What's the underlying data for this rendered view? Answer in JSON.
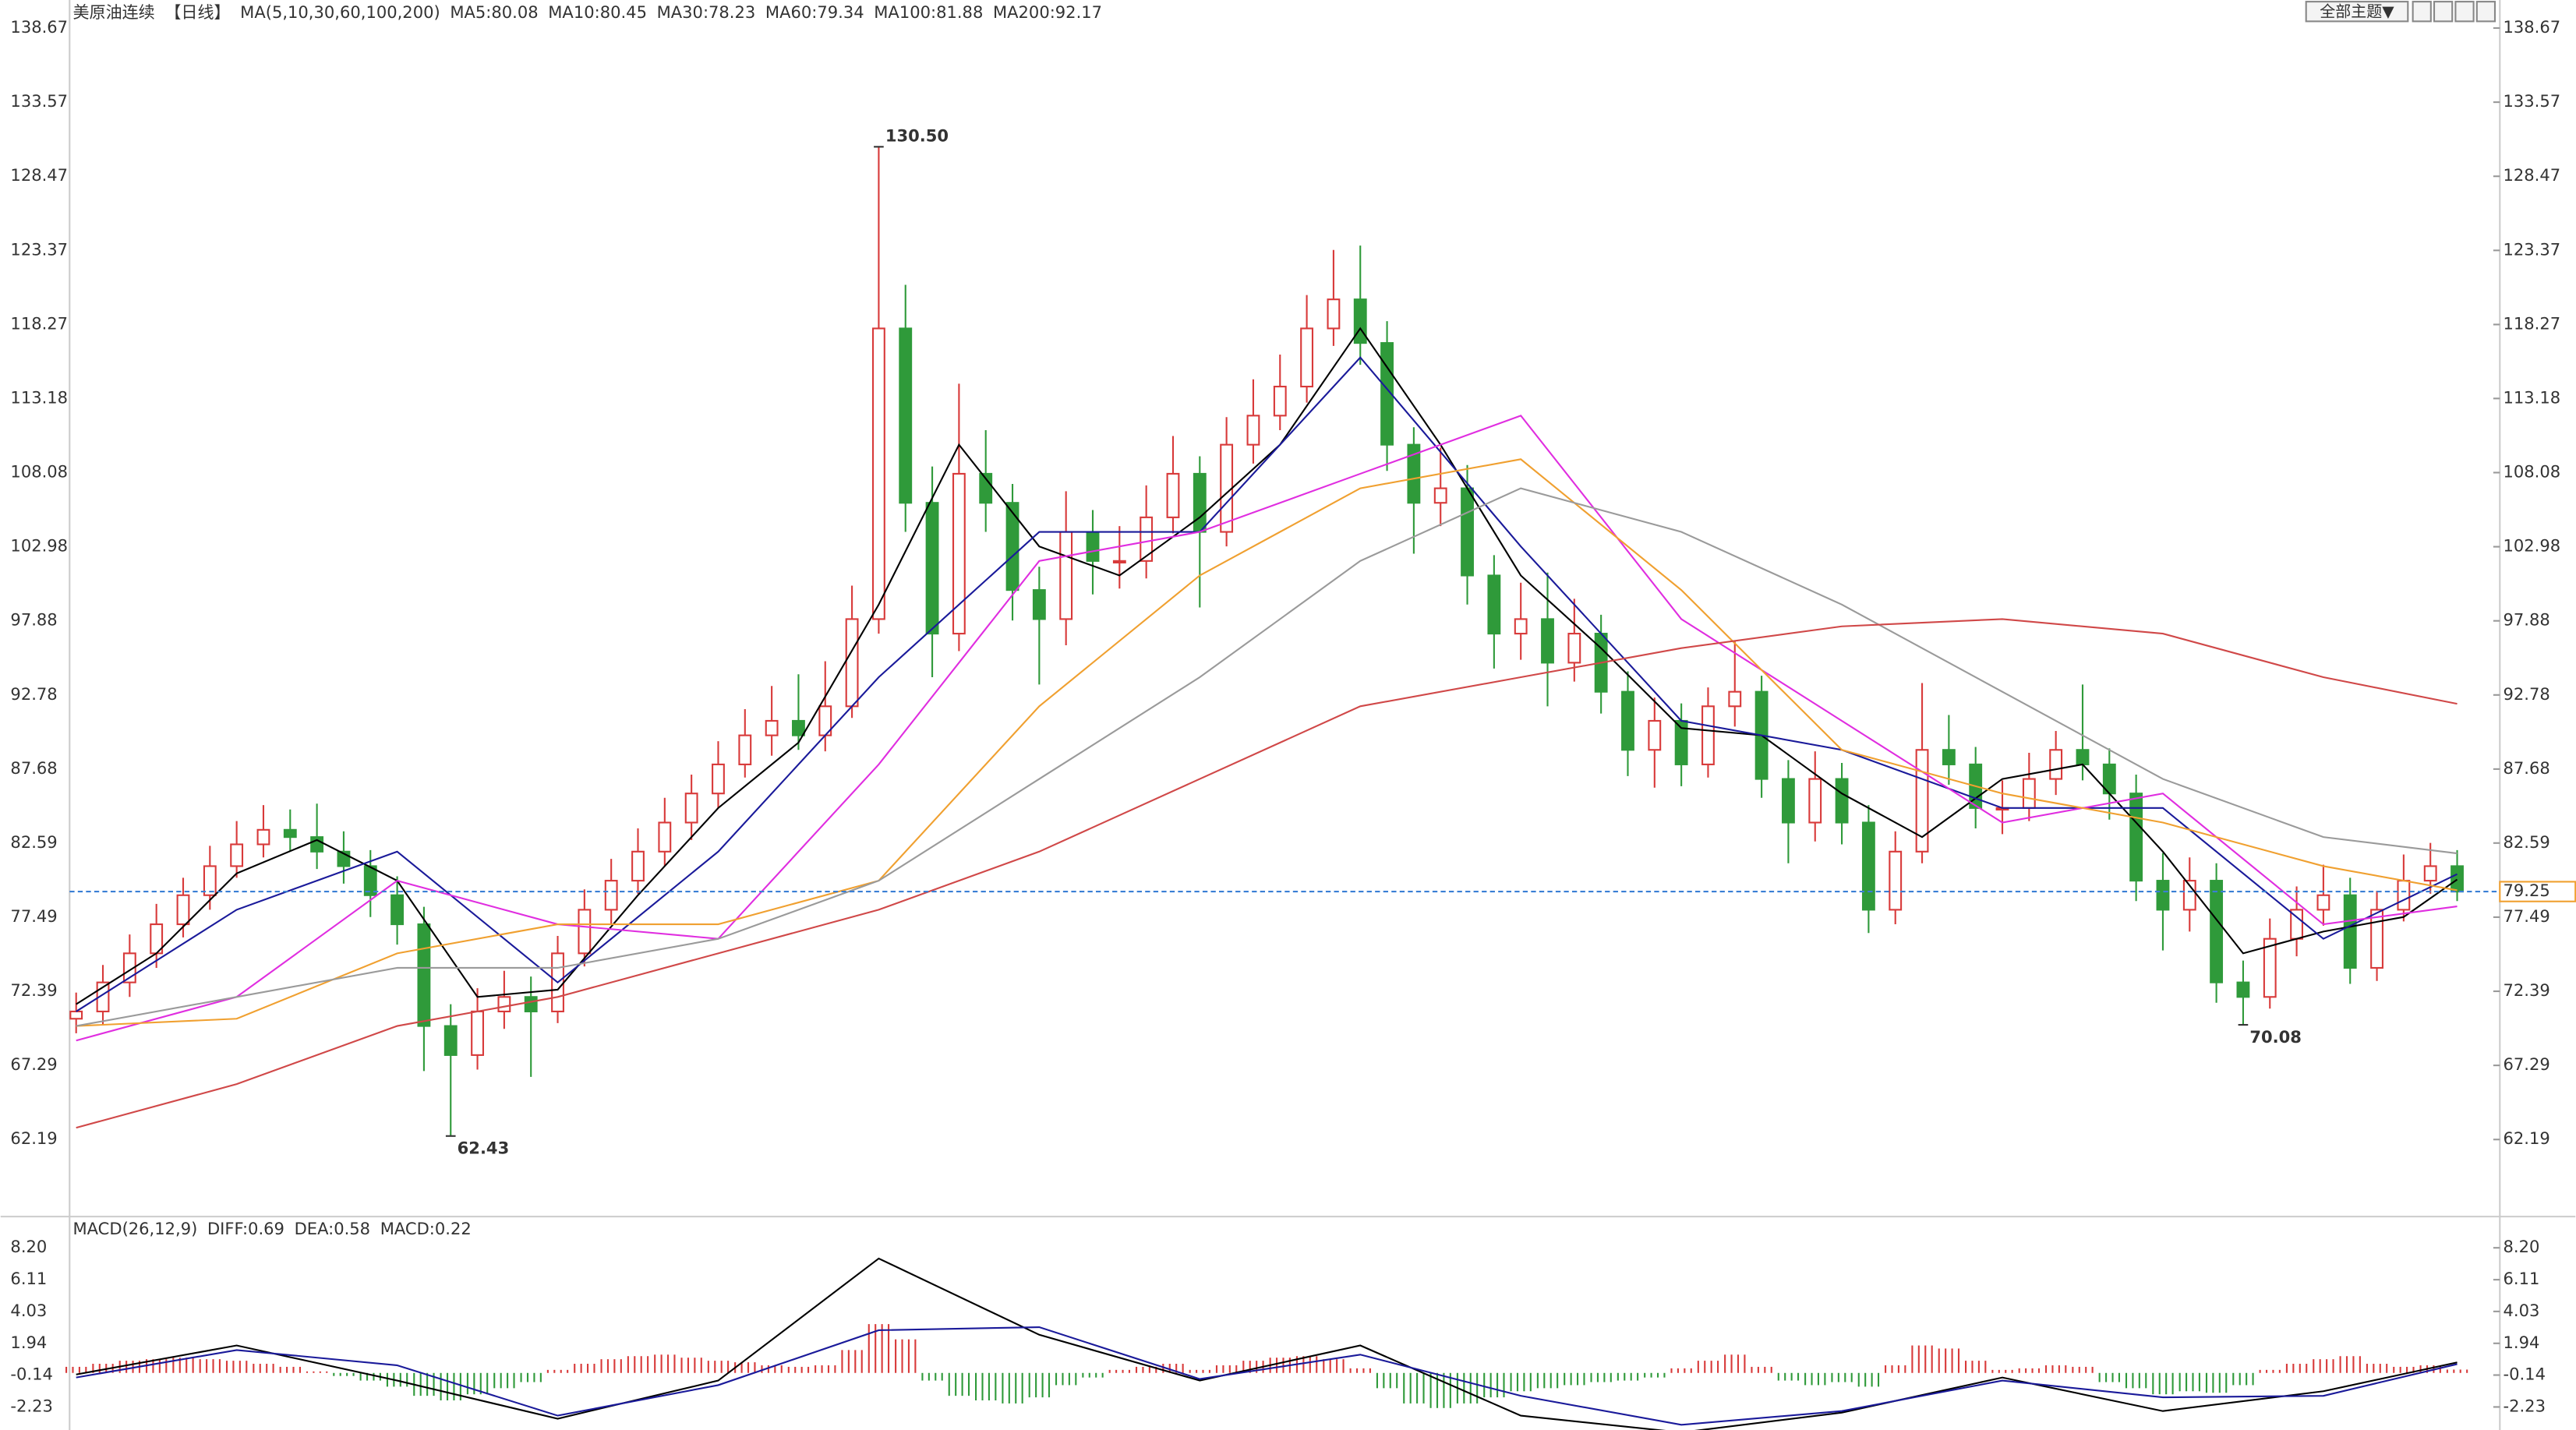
{
  "chart_data": [
    {
      "type": "candlestick",
      "title": "美原油连续",
      "period": "【日线】",
      "ma_title": "MA(5,10,30,60,100,200)",
      "ylim": [
        57.0,
        140.6
      ],
      "yticks": [
        138.67,
        133.57,
        128.47,
        123.37,
        118.27,
        113.18,
        108.08,
        102.98,
        97.88,
        92.78,
        87.68,
        82.59,
        77.49,
        72.39,
        67.29,
        62.19
      ],
      "grid": false,
      "up_color": "#d83a3a",
      "down_color": "#2f9a3a",
      "open": [
        70.5,
        71,
        73,
        75,
        77,
        79,
        81,
        82.5,
        83.5,
        83,
        82,
        81,
        79,
        77,
        70,
        68,
        71,
        72,
        71,
        75,
        78,
        80,
        82,
        84,
        86,
        88,
        90,
        91,
        90,
        92,
        98,
        118,
        106,
        97,
        108,
        106,
        100,
        98,
        104,
        102,
        102,
        105,
        108,
        104,
        110,
        112,
        114,
        118,
        120,
        117,
        110,
        106,
        107,
        101,
        97,
        98,
        95,
        97,
        93,
        89,
        91,
        88,
        92,
        93,
        87,
        84,
        87,
        84,
        78,
        82,
        89,
        88,
        85,
        85,
        87,
        89,
        88,
        86,
        80,
        78,
        80,
        73,
        72,
        76,
        78,
        79,
        74,
        78,
        80,
        81
      ],
      "high": [
        72.3,
        74.2,
        76.3,
        78.4,
        80.2,
        82.4,
        84.1,
        85.2,
        84.9,
        85.3,
        83.4,
        82.1,
        80.3,
        78.2,
        71.5,
        72.6,
        73.8,
        73.4,
        76.2,
        79.4,
        81.5,
        83.6,
        85.7,
        87.3,
        89.6,
        91.8,
        93.4,
        94.2,
        95.1,
        100.3,
        130.5,
        121,
        108.5,
        114.2,
        111,
        107.3,
        101.6,
        106.8,
        105.5,
        104.4,
        107.2,
        110.6,
        109.2,
        111.9,
        114.5,
        116.2,
        120.3,
        123.4,
        123.7,
        118.5,
        111.2,
        109.8,
        108.6,
        102.4,
        100.5,
        101.2,
        99.4,
        98.3,
        94.4,
        92.6,
        92.2,
        93.3,
        96.5,
        94.1,
        88.3,
        88.9,
        88.1,
        85.2,
        83.4,
        93.6,
        91.4,
        89.2,
        86.9,
        88.8,
        90.3,
        93.5,
        89.1,
        87.3,
        81.9,
        81.6,
        81.2,
        74.5,
        77.4,
        79.6,
        81.1,
        80.2,
        79.3,
        81.8,
        82.6,
        82.1
      ],
      "low": [
        69.5,
        70.1,
        72,
        74,
        76.1,
        78,
        80.2,
        81.6,
        82,
        80.8,
        79.8,
        77.5,
        75.6,
        66.9,
        62.43,
        67,
        69.8,
        66.5,
        70.2,
        74.1,
        77,
        79.1,
        81,
        82.8,
        85,
        87.1,
        88.6,
        89,
        88.9,
        91.2,
        97,
        104,
        94,
        95.8,
        104,
        97.9,
        93.5,
        96.2,
        99.7,
        100.1,
        100.8,
        103.9,
        98.8,
        103,
        108.7,
        111,
        112.9,
        116.8,
        115.5,
        108.2,
        102.5,
        104.4,
        99,
        94.6,
        95.2,
        92,
        93.7,
        91.5,
        87.2,
        86.4,
        86.5,
        87.1,
        90.6,
        85.7,
        81.2,
        82.7,
        82.5,
        76.4,
        77,
        81.2,
        86.6,
        83.6,
        83.2,
        84.1,
        85.9,
        86.9,
        84.2,
        78.6,
        75.2,
        76.5,
        71.6,
        70.08,
        71.2,
        74.8,
        76.9,
        72.9,
        73.1,
        77.2,
        79.1,
        78.6
      ],
      "close": [
        71,
        73,
        75,
        77,
        79,
        81,
        82.5,
        83.5,
        83,
        82,
        81,
        79,
        77,
        70,
        68,
        71,
        72,
        71,
        75,
        78,
        80,
        82,
        84,
        86,
        88,
        90,
        91,
        90,
        92,
        98,
        118,
        106,
        97,
        108,
        106,
        100,
        98,
        104,
        102,
        102,
        105,
        108,
        104,
        110,
        112,
        114,
        118,
        120,
        117,
        110,
        106,
        107,
        101,
        97,
        98,
        95,
        97,
        93,
        89,
        91,
        88,
        92,
        93,
        87,
        84,
        87,
        84,
        78,
        82,
        89,
        88,
        85,
        85,
        87,
        89,
        88,
        86,
        80,
        78,
        80,
        73,
        72,
        76,
        78,
        79,
        74,
        78,
        80,
        81,
        79.25
      ],
      "series": [
        {
          "name": "MA5:80.08",
          "color": "#000000",
          "x": [
            0,
            3,
            6,
            9,
            12,
            15,
            18,
            21,
            24,
            27,
            30,
            33,
            36,
            39,
            42,
            45,
            48,
            51,
            54,
            57,
            60,
            63,
            66,
            69,
            72,
            75,
            78,
            81,
            84,
            87,
            89
          ],
          "values": [
            71.5,
            75,
            80.5,
            82.8,
            80,
            72,
            72.5,
            79,
            85,
            89.5,
            99,
            110,
            103,
            101,
            105,
            110,
            118,
            110,
            101,
            96,
            90.5,
            90,
            86,
            83,
            87,
            88,
            82,
            75,
            76.5,
            77.5,
            80.08
          ]
        },
        {
          "name": "MA10:80.45",
          "color": "#1a1a9a",
          "x": [
            0,
            6,
            12,
            18,
            24,
            30,
            36,
            42,
            48,
            54,
            60,
            66,
            72,
            78,
            84,
            89
          ],
          "values": [
            71,
            78,
            82,
            73,
            82,
            94,
            104,
            104,
            116,
            103,
            91,
            89,
            85,
            85,
            76,
            80.45
          ]
        },
        {
          "name": "MA30:78.23",
          "color": "#e02ee0",
          "x": [
            0,
            6,
            12,
            18,
            24,
            30,
            36,
            42,
            48,
            54,
            60,
            66,
            72,
            78,
            84,
            89
          ],
          "values": [
            69,
            72,
            80,
            77,
            76,
            88,
            102,
            104,
            108,
            112,
            98,
            91,
            84,
            86,
            77,
            78.23
          ]
        },
        {
          "name": "MA60:79.34",
          "color": "#f0a030",
          "x": [
            0,
            6,
            12,
            18,
            24,
            30,
            36,
            42,
            48,
            54,
            60,
            66,
            72,
            78,
            84,
            89
          ],
          "values": [
            70,
            70.5,
            75,
            77,
            77,
            80,
            92,
            101,
            107,
            109,
            100,
            89,
            86,
            84,
            81,
            79.34
          ]
        },
        {
          "name": "MA100:81.88",
          "color": "#9a9a9a",
          "x": [
            0,
            6,
            12,
            18,
            24,
            30,
            36,
            42,
            48,
            54,
            60,
            66,
            72,
            78,
            84,
            89
          ],
          "values": [
            70,
            72,
            74,
            74,
            76,
            80,
            87,
            94,
            102,
            107,
            104,
            99,
            93,
            87,
            83,
            81.88
          ]
        },
        {
          "name": "MA200:92.17",
          "color": "#d04848",
          "x": [
            0,
            6,
            12,
            18,
            24,
            30,
            36,
            42,
            48,
            54,
            60,
            66,
            72,
            78,
            84,
            89
          ],
          "values": [
            63,
            66,
            70,
            72,
            75,
            78,
            82,
            87,
            92,
            94,
            96,
            97.5,
            98,
            97,
            94,
            92.17
          ]
        }
      ],
      "annotations": [
        {
          "value": 130.5,
          "label": "130.50"
        },
        {
          "value": 62.43,
          "label": "62.43"
        },
        {
          "value": 70.08,
          "label": "70.08"
        }
      ],
      "last_price": {
        "value": 79.25,
        "label": "79.25"
      },
      "button": "全部主题▼"
    },
    {
      "type": "macd",
      "title": "MACD(26,12,9)",
      "ylim": [
        -3.74,
        10.14
      ],
      "yticks": [
        {
          "value": 8.2,
          "label": "8.20"
        },
        6.11,
        4.03,
        1.94,
        -0.14,
        -2.23
      ],
      "series": [
        {
          "name": "DIFF:0.69",
          "color": "#000000",
          "x": [
            0,
            6,
            12,
            18,
            24,
            30,
            36,
            42,
            48,
            54,
            60,
            66,
            72,
            78,
            84,
            89
          ],
          "values": [
            -0.1,
            1.8,
            -0.5,
            -3.0,
            -0.5,
            7.5,
            2.5,
            -0.5,
            1.8,
            -2.8,
            -3.9,
            -2.6,
            -0.3,
            -2.5,
            -1.2,
            0.69
          ]
        },
        {
          "name": "DEA:0.58",
          "color": "#1a1a9a",
          "x": [
            0,
            6,
            12,
            18,
            24,
            30,
            36,
            42,
            48,
            54,
            60,
            66,
            72,
            78,
            84,
            89
          ],
          "values": [
            -0.3,
            1.5,
            0.5,
            -2.8,
            -0.8,
            2.8,
            3.0,
            -0.4,
            1.2,
            -1.5,
            -3.4,
            -2.5,
            -0.5,
            -1.6,
            -1.5,
            0.58
          ]
        }
      ],
      "histogram": {
        "name": "MACD:0.22",
        "up_color": "#d83a3a",
        "down_color": "#2f9a3a",
        "values": [
          0.4,
          0.6,
          0.8,
          0.9,
          1.0,
          0.9,
          0.8,
          0.6,
          0.4,
          0.1,
          -0.2,
          -0.5,
          -0.9,
          -1.5,
          -1.8,
          -1.4,
          -1.0,
          -0.6,
          0.2,
          0.6,
          0.9,
          1.1,
          1.2,
          1.0,
          0.8,
          0.7,
          0.5,
          0.4,
          0.5,
          1.5,
          3.2,
          2.2,
          -0.5,
          -1.5,
          -1.8,
          -2.0,
          -1.6,
          -0.8,
          -0.3,
          0.2,
          0.4,
          0.6,
          0.2,
          0.5,
          0.8,
          1.0,
          1.1,
          0.9,
          0.3,
          -1.0,
          -2.0,
          -2.3,
          -2.0,
          -1.6,
          -1.2,
          -1.0,
          -0.8,
          -0.6,
          -0.5,
          -0.3,
          0.3,
          0.8,
          1.2,
          0.4,
          -0.5,
          -0.8,
          -0.6,
          -0.9,
          0.5,
          1.8,
          1.6,
          0.8,
          0.2,
          0.3,
          0.5,
          0.4,
          -0.6,
          -1.0,
          -1.4,
          -1.2,
          -1.3,
          -0.8,
          0.2,
          0.6,
          0.9,
          1.1,
          0.6,
          0.4,
          0.5,
          0.22
        ]
      }
    }
  ]
}
